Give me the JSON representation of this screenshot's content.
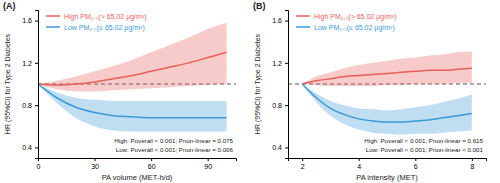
{
  "chart_data": [
    {
      "type": "line",
      "title": "(A)",
      "x_label": "PA volume (MET-h/d)",
      "y_label": "HR (95%CI) for Type 2 Diabetes",
      "x": [
        0,
        10,
        20,
        30,
        40,
        50,
        60,
        70,
        80,
        90,
        100
      ],
      "xlim": [
        0,
        105
      ],
      "xticks": [
        0,
        30,
        60,
        90
      ],
      "ylim": [
        0.3,
        1.7
      ],
      "yticks": [
        0.4,
        0.8,
        1.2,
        1.6
      ],
      "reference_y": 1,
      "legend": "upper left",
      "series": [
        {
          "name": "High PM₂.₅(> 65.02 μg/m³)",
          "color": "#e8605c",
          "values": [
            1.0,
            0.99,
            1.0,
            1.02,
            1.05,
            1.08,
            1.12,
            1.16,
            1.2,
            1.25,
            1.3
          ],
          "lower": [
            1.0,
            0.95,
            0.93,
            0.93,
            0.94,
            0.95,
            0.96,
            0.97,
            0.98,
            0.99,
            1.0
          ],
          "upper": [
            1.0,
            1.03,
            1.07,
            1.12,
            1.17,
            1.23,
            1.3,
            1.37,
            1.44,
            1.52,
            1.58
          ]
        },
        {
          "name": "Low PM₂.₅(≤ 65.02 μg/m³)",
          "color": "#3d9ad6",
          "values": [
            1.0,
            0.87,
            0.78,
            0.73,
            0.7,
            0.69,
            0.68,
            0.68,
            0.68,
            0.68,
            0.68
          ],
          "lower": [
            1.0,
            0.82,
            0.68,
            0.6,
            0.56,
            0.55,
            0.55,
            0.55,
            0.55,
            0.55,
            0.55
          ],
          "upper": [
            1.0,
            0.92,
            0.87,
            0.85,
            0.84,
            0.84,
            0.84,
            0.84,
            0.84,
            0.84,
            0.84
          ]
        }
      ],
      "annotations": [
        "High: Poverall < 0.001; Pnon-linear = 0.075",
        "Low: Poverall < 0.001; Pnon-linear = 0.006"
      ]
    },
    {
      "type": "line",
      "title": "(B)",
      "x_label": "PA intensity (MET)",
      "y_label": "HR (95%CI) for Type 2 Diabetes",
      "x": [
        2,
        2.5,
        3,
        3.5,
        4,
        4.5,
        5,
        5.5,
        6,
        6.5,
        7,
        7.5,
        8
      ],
      "xlim": [
        1.5,
        8.5
      ],
      "xticks": [
        2,
        4,
        6,
        8
      ],
      "ylim": [
        0.3,
        1.7
      ],
      "yticks": [
        0.4,
        0.8,
        1.2,
        1.6
      ],
      "reference_y": 1,
      "legend": "upper left",
      "series": [
        {
          "name": "High PM₂.₅(> 65.02 μg/m³)",
          "color": "#e8605c",
          "values": [
            1.0,
            1.03,
            1.05,
            1.07,
            1.08,
            1.09,
            1.1,
            1.11,
            1.12,
            1.13,
            1.13,
            1.14,
            1.15
          ],
          "lower": [
            1.0,
            0.99,
            0.98,
            0.98,
            0.98,
            0.98,
            0.99,
            0.99,
            1.0,
            1.0,
            1.0,
            1.01,
            1.01
          ],
          "upper": [
            1.0,
            1.07,
            1.11,
            1.15,
            1.18,
            1.2,
            1.22,
            1.24,
            1.25,
            1.27,
            1.28,
            1.3,
            1.31
          ]
        },
        {
          "name": "Low PM₂.₅(≤ 65.02 μg/m³)",
          "color": "#3d9ad6",
          "values": [
            1.0,
            0.87,
            0.77,
            0.71,
            0.67,
            0.65,
            0.64,
            0.64,
            0.65,
            0.66,
            0.68,
            0.7,
            0.72
          ],
          "lower": [
            1.0,
            0.83,
            0.7,
            0.62,
            0.57,
            0.54,
            0.53,
            0.52,
            0.53,
            0.53,
            0.54,
            0.55,
            0.56
          ],
          "upper": [
            1.0,
            0.91,
            0.84,
            0.8,
            0.77,
            0.76,
            0.75,
            0.76,
            0.78,
            0.8,
            0.83,
            0.86,
            0.9
          ]
        }
      ],
      "annotations": [
        "High: Poverall < 0.001; Pnon-linear = 0.615",
        "Low: Poverall < 0.001; Pnon-linear < 0.001"
      ]
    }
  ]
}
